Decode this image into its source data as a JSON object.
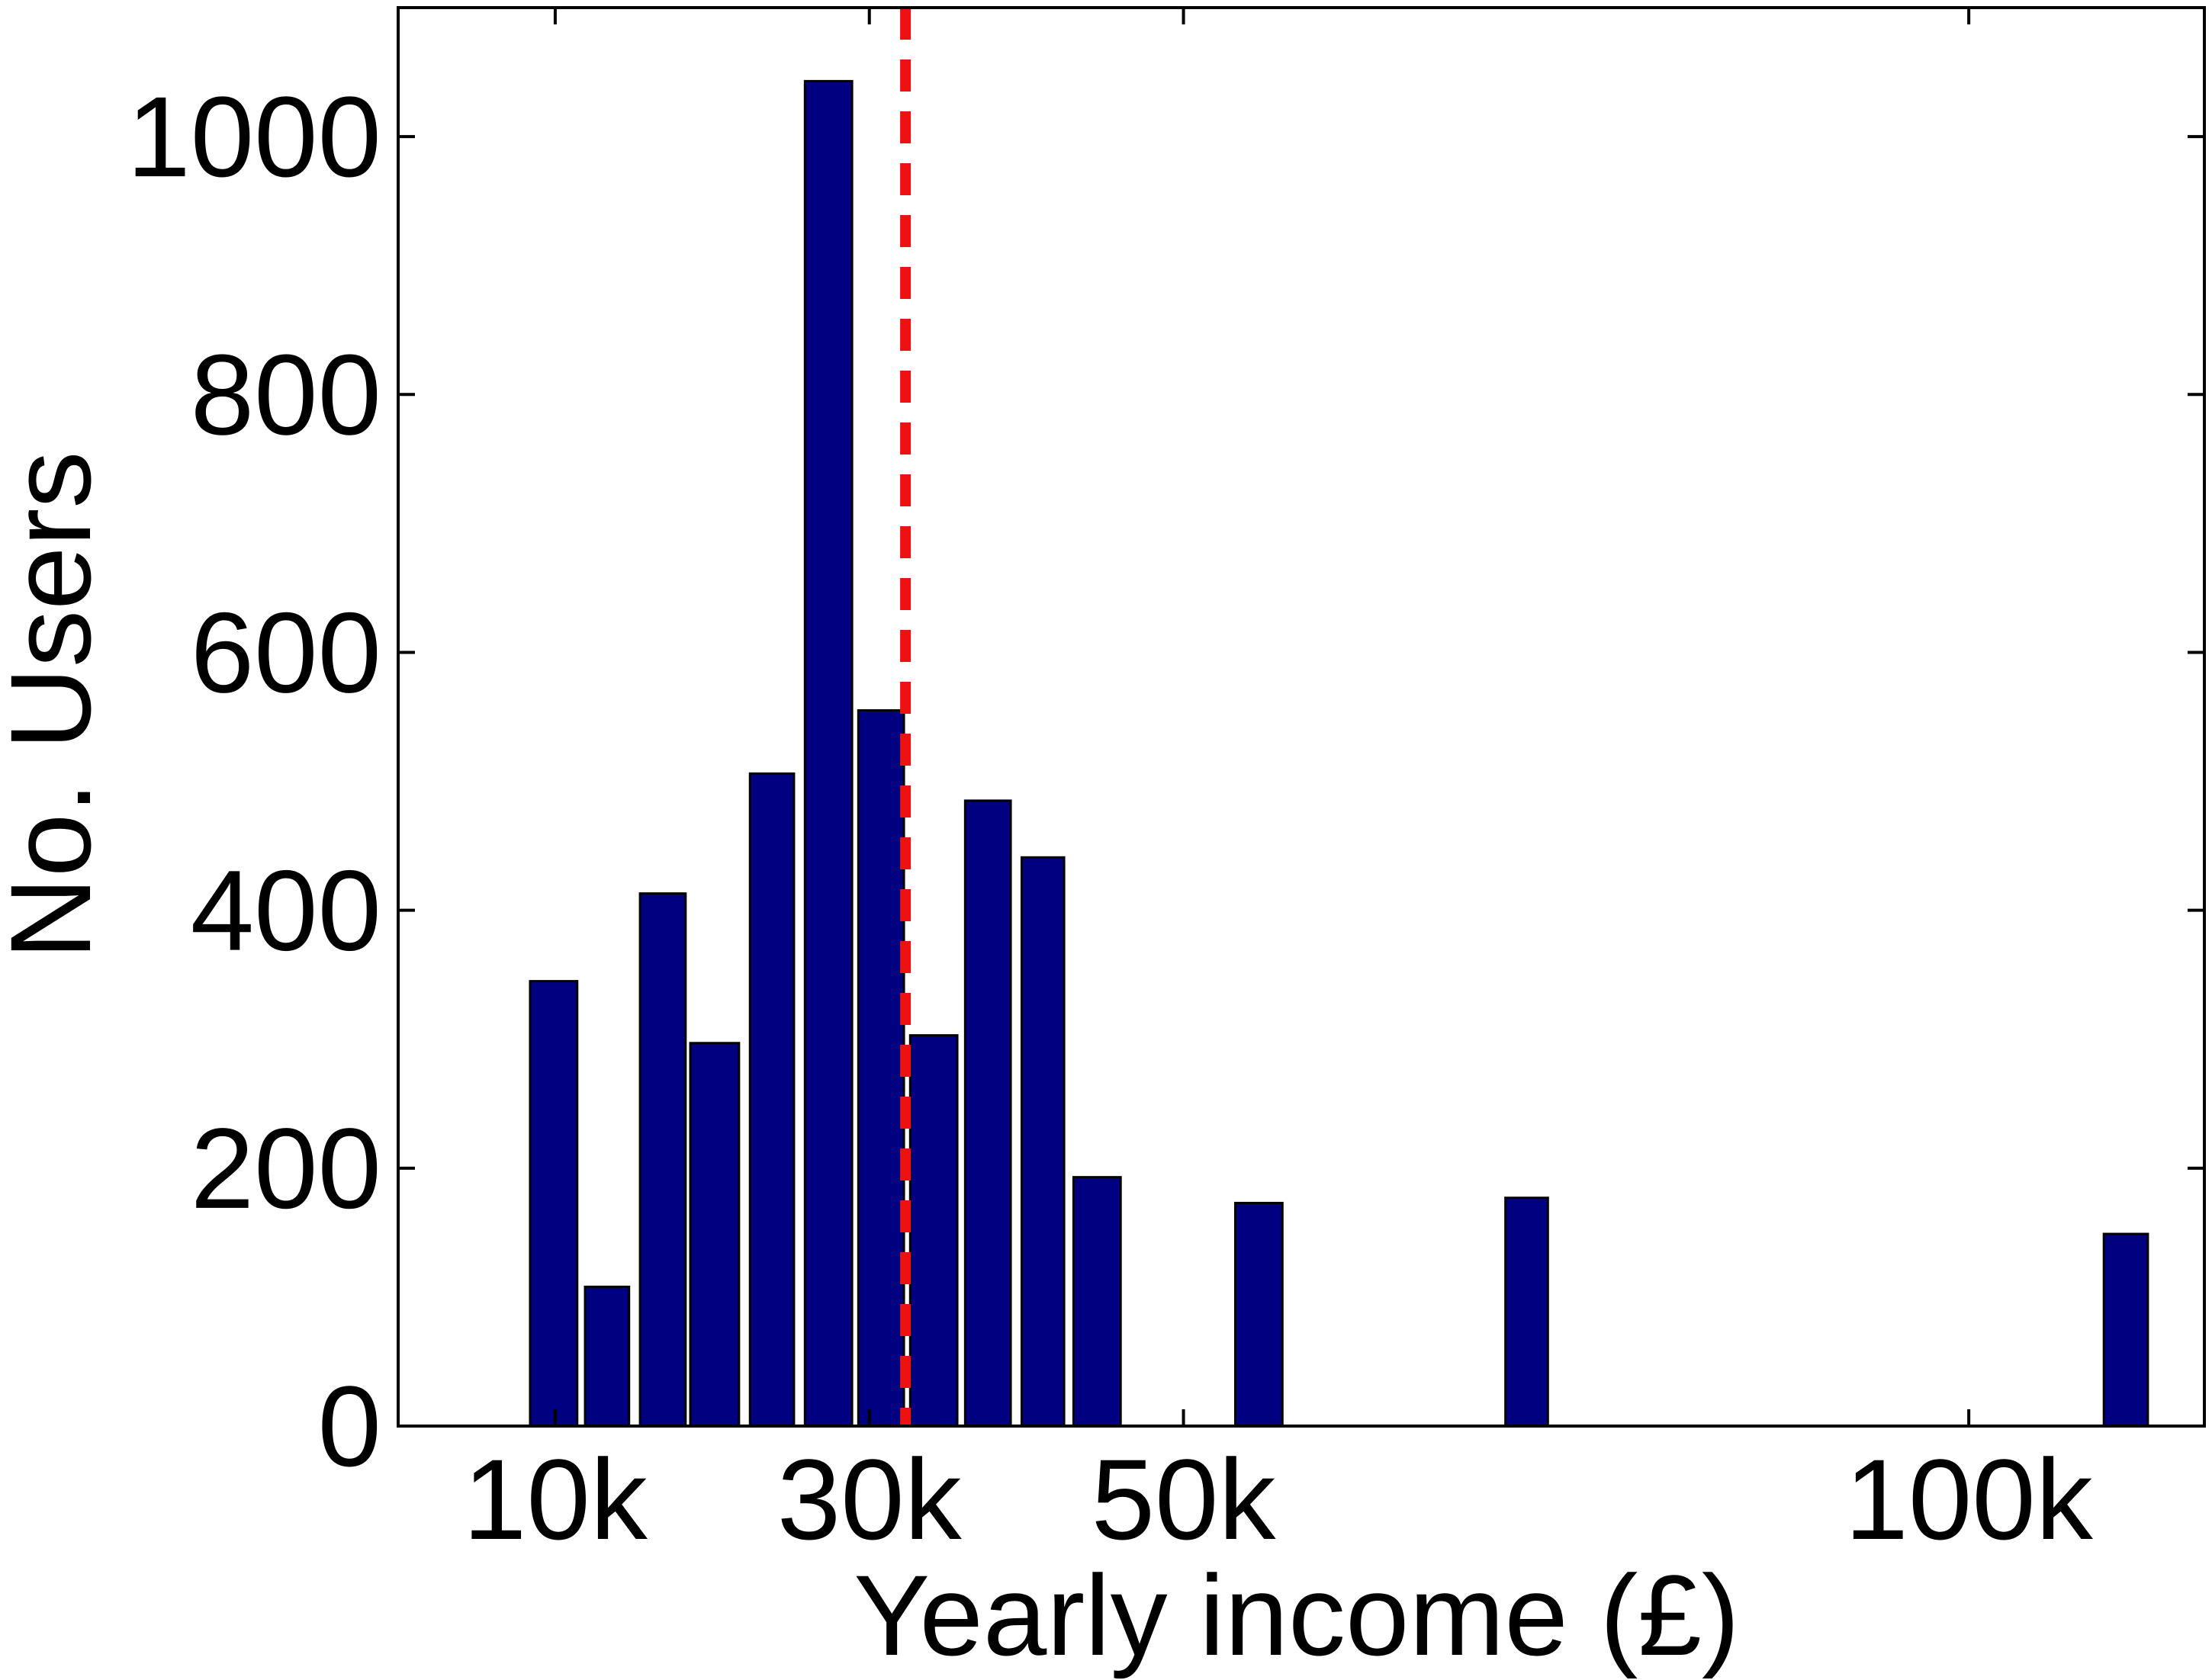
{
  "chart_data": {
    "type": "bar",
    "title": "",
    "xlabel": "Yearly income (£)",
    "ylabel": "No. Users",
    "xlim": [
      0,
      115
    ],
    "ylim": [
      0,
      1100
    ],
    "x_ticks": [
      {
        "value": 10,
        "label": "10k"
      },
      {
        "value": 30,
        "label": "30k"
      },
      {
        "value": 50,
        "label": "50k"
      },
      {
        "value": 100,
        "label": "100k"
      }
    ],
    "y_ticks": [
      {
        "value": 0,
        "label": "0"
      },
      {
        "value": 200,
        "label": "200"
      },
      {
        "value": 400,
        "label": "400"
      },
      {
        "value": 600,
        "label": "600"
      },
      {
        "value": 800,
        "label": "800"
      },
      {
        "value": 1000,
        "label": "1000"
      }
    ],
    "bar_color": "#000080",
    "bars": [
      {
        "x0": 8.4,
        "x1": 11.4,
        "value": 345
      },
      {
        "x0": 11.9,
        "x1": 14.7,
        "value": 108
      },
      {
        "x0": 15.4,
        "x1": 18.3,
        "value": 413
      },
      {
        "x0": 18.6,
        "x1": 21.7,
        "value": 297
      },
      {
        "x0": 22.4,
        "x1": 25.2,
        "value": 506
      },
      {
        "x0": 25.9,
        "x1": 28.9,
        "value": 1043
      },
      {
        "x0": 29.3,
        "x1": 32.2,
        "value": 555
      },
      {
        "x0": 32.6,
        "x1": 35.6,
        "value": 303
      },
      {
        "x0": 36.1,
        "x1": 39.0,
        "value": 485
      },
      {
        "x0": 39.7,
        "x1": 42.4,
        "value": 441
      },
      {
        "x0": 43.0,
        "x1": 46.0,
        "value": 193
      },
      {
        "x0": 53.3,
        "x1": 56.3,
        "value": 173
      },
      {
        "x0": 70.5,
        "x1": 73.2,
        "value": 177
      },
      {
        "x0": 108.6,
        "x1": 111.4,
        "value": 149
      }
    ],
    "reference_line": {
      "x": 32.3,
      "color": "#ee1111",
      "style": "dashed"
    }
  }
}
